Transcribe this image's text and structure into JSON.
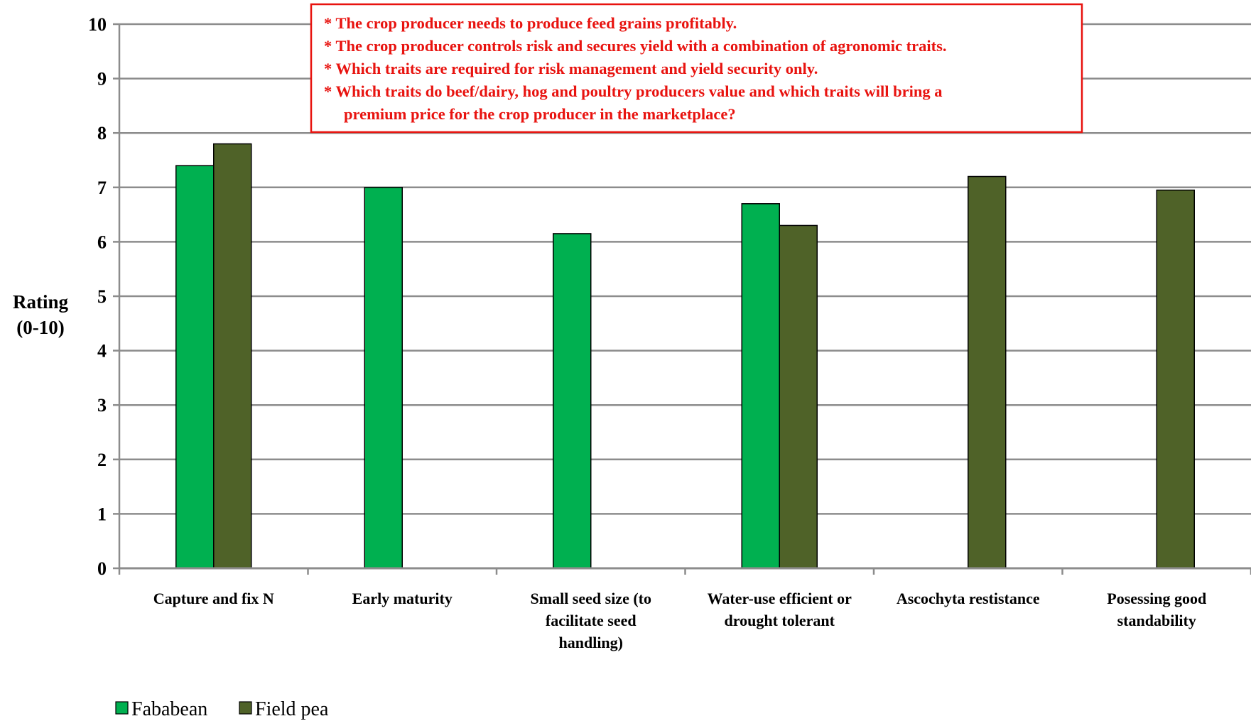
{
  "chart_data": {
    "type": "bar",
    "ylabel": "Rating\n(0-10)",
    "ylim": [
      0,
      10
    ],
    "yticks": [
      "0",
      "1",
      "2",
      "3",
      "4",
      "5",
      "6",
      "7",
      "8",
      "9",
      "10"
    ],
    "grid": true,
    "legend_position": "bottom-left",
    "categories": [
      "Capture and fix N",
      "Early maturity",
      "Small seed size (to\nfacilitate seed\nhandling)",
      "Water-use efficient or\ndrought tolerant",
      "Ascochyta restistance",
      "Posessing good\nstandability"
    ],
    "series": [
      {
        "name": "Fababean",
        "color": "#00b050",
        "values": [
          7.4,
          7.0,
          6.15,
          6.7,
          null,
          null
        ]
      },
      {
        "name": "Field pea",
        "color": "#4f6228",
        "values": [
          7.8,
          null,
          null,
          6.3,
          7.2,
          6.95
        ]
      }
    ],
    "annotation": {
      "border_color": "#e8130f",
      "lines": [
        "* The crop producer needs to produce feed grains profitably.",
        "* The crop producer controls risk and secures yield with a combination of agronomic traits.",
        "* Which traits are required for risk management and yield security only.",
        "* Which traits do beef/dairy, hog and poultry producers value and which traits will bring a",
        "premium price for the crop producer in the marketplace?"
      ]
    }
  }
}
